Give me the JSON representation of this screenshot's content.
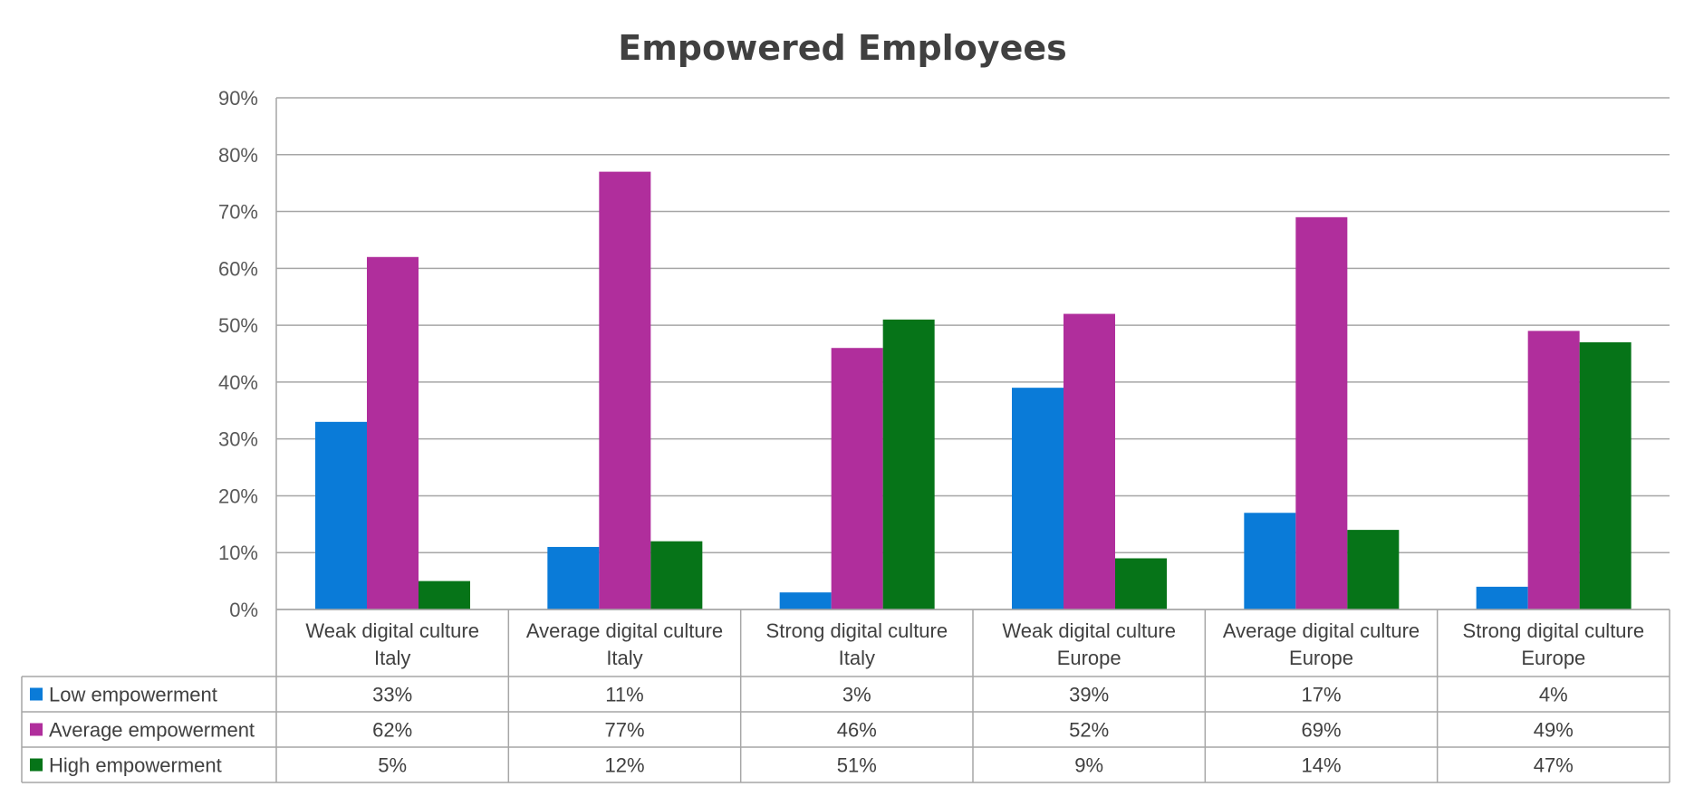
{
  "chart_data": {
    "type": "bar",
    "title": "Empowered Employees",
    "categories": [
      [
        "Weak digital culture",
        "Italy"
      ],
      [
        "Average digital culture",
        "Italy"
      ],
      [
        "Strong digital culture",
        "Italy"
      ],
      [
        "Weak digital culture",
        "Europe"
      ],
      [
        "Average digital culture",
        "Europe"
      ],
      [
        "Strong digital culture",
        "Europe"
      ]
    ],
    "series": [
      {
        "name": "Low empowerment",
        "color": "#0a7bd8",
        "values": [
          33,
          11,
          3,
          39,
          17,
          4
        ],
        "labels": [
          "33%",
          "11%",
          "3%",
          "39%",
          "17%",
          "4%"
        ]
      },
      {
        "name": "Average empowerment",
        "color": "#b02e9c",
        "values": [
          62,
          77,
          46,
          52,
          69,
          49
        ],
        "labels": [
          "62%",
          "77%",
          "46%",
          "52%",
          "69%",
          "49%"
        ]
      },
      {
        "name": "High empowerment",
        "color": "#067418",
        "values": [
          5,
          12,
          51,
          9,
          14,
          47
        ],
        "labels": [
          "5%",
          "12%",
          "51%",
          "9%",
          "14%",
          "47%"
        ]
      }
    ],
    "ylim": [
      0,
      90
    ],
    "yticks": [
      "0%",
      "10%",
      "20%",
      "30%",
      "40%",
      "50%",
      "60%",
      "70%",
      "80%",
      "90%"
    ],
    "grid": true,
    "legend": "data-table"
  }
}
